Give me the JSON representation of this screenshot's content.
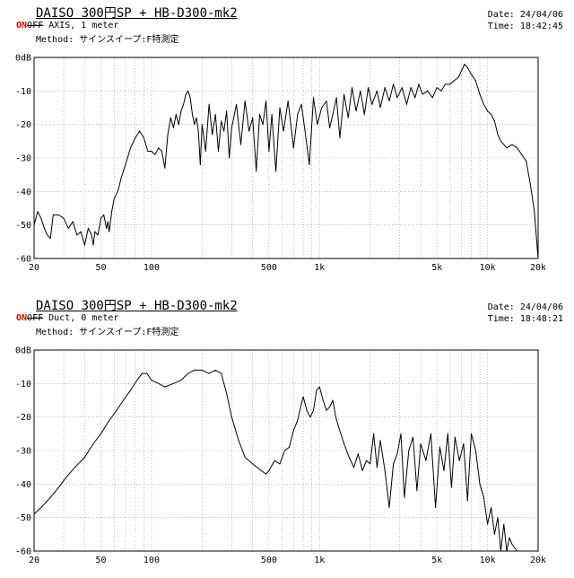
{
  "charts": [
    {
      "title": "DAISO 300円SP + HB-D300-mk2",
      "date_label": "Date: 24/04/06",
      "time_label": "Time: 18:42:45",
      "on_label": "ON",
      "off_label": "OFF",
      "condition": "AXIS, 1 meter",
      "method": "Method: サインスイープ:F特測定"
    },
    {
      "title": "DAISO 300円SP + HB-D300-mk2",
      "date_label": "Date: 24/04/06",
      "time_label": "Time: 18:48:21",
      "on_label": "ON",
      "off_label": "OFF",
      "condition": "Duct, 0 meter",
      "method": "Method: サインスイープ:F特測定"
    }
  ],
  "chart_data": [
    {
      "type": "line",
      "xscale": "log",
      "xlim": [
        20,
        20000
      ],
      "ylim": [
        -60,
        0
      ],
      "grid": true,
      "x_ticks": [
        20,
        50,
        100,
        500,
        1000,
        5000,
        10000,
        20000
      ],
      "x_tick_labels": [
        "20",
        "50",
        "100",
        "500",
        "1k",
        "5k",
        "10k",
        "20k"
      ],
      "y_ticks": [
        0,
        -10,
        -20,
        -30,
        -40,
        -50,
        -60
      ],
      "y_tick_labels": [
        "0dB",
        "-10",
        "-20",
        "-30",
        "-40",
        "-50",
        "-60"
      ],
      "series": [
        {
          "color": "#000000",
          "points": [
            [
              20,
              -50
            ],
            [
              21,
              -46
            ],
            [
              22,
              -48
            ],
            [
              23,
              -51
            ],
            [
              24,
              -53
            ],
            [
              25,
              -54
            ],
            [
              26,
              -47
            ],
            [
              28,
              -47
            ],
            [
              30,
              -48
            ],
            [
              32,
              -51
            ],
            [
              33,
              -50
            ],
            [
              34,
              -49
            ],
            [
              36,
              -53
            ],
            [
              38,
              -52
            ],
            [
              40,
              -56
            ],
            [
              42,
              -51
            ],
            [
              44,
              -53
            ],
            [
              45,
              -56
            ],
            [
              46,
              -52
            ],
            [
              48,
              -53
            ],
            [
              50,
              -48
            ],
            [
              52,
              -47
            ],
            [
              54,
              -51
            ],
            [
              55,
              -49
            ],
            [
              56,
              -52
            ],
            [
              58,
              -46
            ],
            [
              60,
              -42
            ],
            [
              63,
              -40
            ],
            [
              66,
              -36
            ],
            [
              70,
              -32
            ],
            [
              75,
              -27
            ],
            [
              80,
              -24
            ],
            [
              85,
              -22
            ],
            [
              90,
              -24
            ],
            [
              95,
              -28
            ],
            [
              100,
              -28
            ],
            [
              105,
              -29
            ],
            [
              110,
              -27
            ],
            [
              115,
              -28
            ],
            [
              120,
              -33
            ],
            [
              125,
              -23
            ],
            [
              130,
              -18
            ],
            [
              135,
              -21
            ],
            [
              140,
              -17
            ],
            [
              145,
              -20
            ],
            [
              150,
              -16
            ],
            [
              155,
              -14
            ],
            [
              160,
              -11
            ],
            [
              165,
              -10
            ],
            [
              170,
              -12
            ],
            [
              175,
              -17
            ],
            [
              180,
              -20
            ],
            [
              185,
              -18
            ],
            [
              190,
              -22
            ],
            [
              195,
              -32
            ],
            [
              200,
              -20
            ],
            [
              210,
              -28
            ],
            [
              220,
              -14
            ],
            [
              230,
              -23
            ],
            [
              240,
              -17
            ],
            [
              250,
              -28
            ],
            [
              260,
              -19
            ],
            [
              270,
              -22
            ],
            [
              280,
              -16
            ],
            [
              290,
              -30
            ],
            [
              300,
              -21
            ],
            [
              320,
              -14
            ],
            [
              340,
              -26
            ],
            [
              360,
              -13
            ],
            [
              380,
              -22
            ],
            [
              400,
              -18
            ],
            [
              420,
              -34
            ],
            [
              440,
              -17
            ],
            [
              460,
              -20
            ],
            [
              480,
              -13
            ],
            [
              500,
              -28
            ],
            [
              520,
              -17
            ],
            [
              550,
              -34
            ],
            [
              580,
              -15
            ],
            [
              610,
              -22
            ],
            [
              650,
              -13
            ],
            [
              700,
              -27
            ],
            [
              740,
              -17
            ],
            [
              780,
              -14
            ],
            [
              820,
              -22
            ],
            [
              870,
              -32
            ],
            [
              920,
              -12
            ],
            [
              970,
              -20
            ],
            [
              1030,
              -15
            ],
            [
              1100,
              -13
            ],
            [
              1150,
              -21
            ],
            [
              1200,
              -17
            ],
            [
              1260,
              -12
            ],
            [
              1320,
              -24
            ],
            [
              1400,
              -11
            ],
            [
              1480,
              -18
            ],
            [
              1560,
              -9
            ],
            [
              1650,
              -16
            ],
            [
              1750,
              -10
            ],
            [
              1850,
              -17
            ],
            [
              1950,
              -9
            ],
            [
              2050,
              -14
            ],
            [
              2200,
              -10
            ],
            [
              2300,
              -15
            ],
            [
              2450,
              -9
            ],
            [
              2600,
              -13
            ],
            [
              2750,
              -8
            ],
            [
              2900,
              -12
            ],
            [
              3100,
              -9
            ],
            [
              3300,
              -14
            ],
            [
              3500,
              -9
            ],
            [
              3700,
              -12
            ],
            [
              3900,
              -8
            ],
            [
              4100,
              -11
            ],
            [
              4400,
              -10
            ],
            [
              4700,
              -12
            ],
            [
              5000,
              -9
            ],
            [
              5300,
              -10
            ],
            [
              5600,
              -8
            ],
            [
              6000,
              -8
            ],
            [
              6300,
              -7
            ],
            [
              6700,
              -6
            ],
            [
              7000,
              -4
            ],
            [
              7300,
              -2
            ],
            [
              7600,
              -3
            ],
            [
              8000,
              -5
            ],
            [
              8500,
              -7
            ],
            [
              9000,
              -11
            ],
            [
              9500,
              -14
            ],
            [
              10000,
              -16
            ],
            [
              10500,
              -17
            ],
            [
              11000,
              -19
            ],
            [
              11500,
              -23
            ],
            [
              12000,
              -25
            ],
            [
              12500,
              -26
            ],
            [
              13000,
              -27
            ],
            [
              14000,
              -26
            ],
            [
              15000,
              -27
            ],
            [
              16000,
              -29
            ],
            [
              17000,
              -31
            ],
            [
              18000,
              -38
            ],
            [
              19000,
              -46
            ],
            [
              20000,
              -60
            ]
          ]
        }
      ]
    },
    {
      "type": "line",
      "xscale": "log",
      "xlim": [
        20,
        20000
      ],
      "ylim": [
        -60,
        0
      ],
      "grid": true,
      "x_ticks": [
        20,
        50,
        100,
        500,
        1000,
        5000,
        10000,
        20000
      ],
      "x_tick_labels": [
        "20",
        "50",
        "100",
        "500",
        "1k",
        "5k",
        "10k",
        "20k"
      ],
      "y_ticks": [
        0,
        -10,
        -20,
        -30,
        -40,
        -50,
        -60
      ],
      "y_tick_labels": [
        "0dB",
        "-10",
        "-20",
        "-30",
        "-40",
        "-50",
        "-60"
      ],
      "series": [
        {
          "color": "#000000",
          "points": [
            [
              20,
              -49
            ],
            [
              22,
              -47
            ],
            [
              25,
              -44
            ],
            [
              28,
              -41
            ],
            [
              31,
              -38
            ],
            [
              35,
              -35
            ],
            [
              40,
              -32
            ],
            [
              45,
              -28
            ],
            [
              50,
              -25
            ],
            [
              56,
              -21
            ],
            [
              62,
              -18
            ],
            [
              68,
              -15
            ],
            [
              75,
              -12
            ],
            [
              82,
              -9
            ],
            [
              88,
              -7
            ],
            [
              94,
              -7
            ],
            [
              100,
              -9
            ],
            [
              110,
              -10
            ],
            [
              120,
              -11
            ],
            [
              135,
              -10
            ],
            [
              150,
              -9
            ],
            [
              165,
              -7
            ],
            [
              180,
              -6
            ],
            [
              200,
              -6
            ],
            [
              220,
              -7
            ],
            [
              240,
              -6
            ],
            [
              260,
              -7
            ],
            [
              280,
              -13
            ],
            [
              300,
              -20
            ],
            [
              330,
              -27
            ],
            [
              360,
              -32
            ],
            [
              400,
              -34
            ],
            [
              450,
              -36
            ],
            [
              480,
              -37
            ],
            [
              500,
              -36
            ],
            [
              540,
              -33
            ],
            [
              580,
              -34
            ],
            [
              620,
              -30
            ],
            [
              660,
              -29
            ],
            [
              700,
              -24
            ],
            [
              740,
              -21
            ],
            [
              780,
              -16
            ],
            [
              800,
              -14
            ],
            [
              840,
              -18
            ],
            [
              880,
              -20
            ],
            [
              920,
              -18
            ],
            [
              960,
              -12
            ],
            [
              1000,
              -11
            ],
            [
              1050,
              -15
            ],
            [
              1100,
              -18
            ],
            [
              1150,
              -17
            ],
            [
              1200,
              -15
            ],
            [
              1250,
              -20
            ],
            [
              1300,
              -23
            ],
            [
              1400,
              -28
            ],
            [
              1500,
              -32
            ],
            [
              1600,
              -35
            ],
            [
              1700,
              -31
            ],
            [
              1800,
              -36
            ],
            [
              1900,
              -33
            ],
            [
              2000,
              -34
            ],
            [
              2100,
              -25
            ],
            [
              2200,
              -35
            ],
            [
              2300,
              -27
            ],
            [
              2450,
              -36
            ],
            [
              2600,
              -47
            ],
            [
              2750,
              -34
            ],
            [
              2900,
              -31
            ],
            [
              3050,
              -25
            ],
            [
              3200,
              -44
            ],
            [
              3400,
              -30
            ],
            [
              3600,
              -26
            ],
            [
              3800,
              -42
            ],
            [
              4000,
              -28
            ],
            [
              4300,
              -33
            ],
            [
              4600,
              -25
            ],
            [
              4900,
              -47
            ],
            [
              5200,
              -29
            ],
            [
              5500,
              -36
            ],
            [
              5800,
              -25
            ],
            [
              6100,
              -41
            ],
            [
              6400,
              -26
            ],
            [
              6800,
              -33
            ],
            [
              7200,
              -28
            ],
            [
              7600,
              -45
            ],
            [
              8000,
              -25
            ],
            [
              8500,
              -30
            ],
            [
              9000,
              -40
            ],
            [
              9500,
              -44
            ],
            [
              10000,
              -52
            ],
            [
              10500,
              -47
            ],
            [
              11000,
              -55
            ],
            [
              11500,
              -50
            ],
            [
              12000,
              -60
            ],
            [
              12500,
              -52
            ],
            [
              13000,
              -60
            ],
            [
              13500,
              -56
            ],
            [
              14000,
              -58
            ],
            [
              15000,
              -60
            ]
          ]
        }
      ]
    }
  ]
}
